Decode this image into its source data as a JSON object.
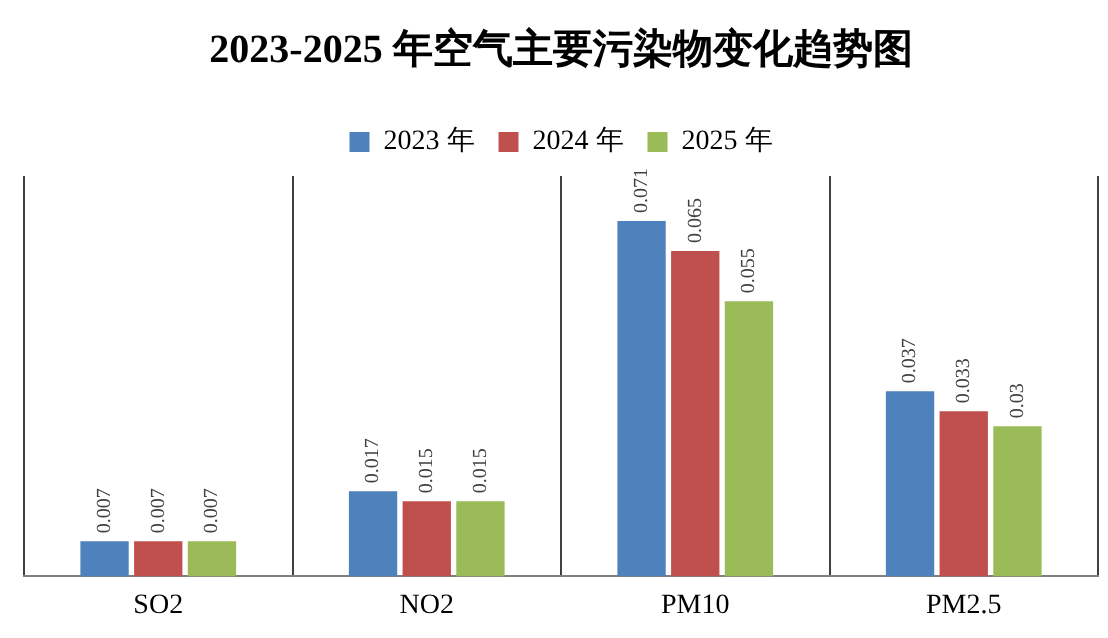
{
  "chart_data": {
    "type": "bar",
    "title": "2023-2025 年空气主要污染物变化趋势图",
    "categories": [
      "SO2",
      "NO2",
      "PM10",
      "PM2.5"
    ],
    "series": [
      {
        "name": "2023 年",
        "color": "#4f81bd",
        "values": [
          0.007,
          0.017,
          0.071,
          0.037
        ]
      },
      {
        "name": "2024 年",
        "color": "#c0504d",
        "values": [
          0.007,
          0.015,
          0.065,
          0.033
        ]
      },
      {
        "name": "2025 年",
        "color": "#9bbb59",
        "values": [
          0.007,
          0.015,
          0.055,
          0.03
        ]
      }
    ],
    "ylim": [
      0,
      0.08
    ],
    "tick_labels": "x",
    "grid": "x",
    "legend": "top",
    "data_labels": true
  }
}
